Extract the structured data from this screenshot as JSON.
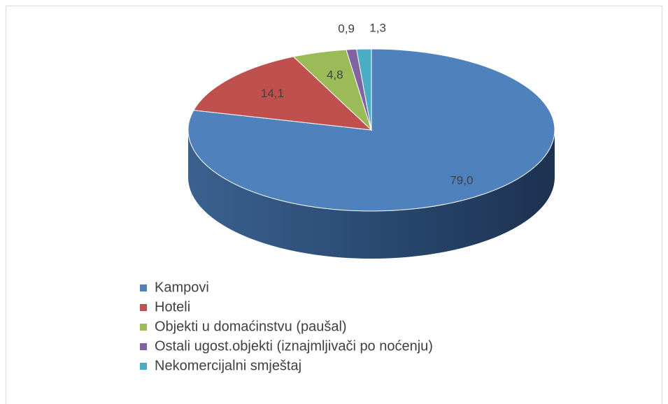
{
  "chart_data": {
    "type": "pie",
    "three_d": true,
    "categories": [
      "Kampovi",
      "Hoteli",
      "Objekti u domaćinstvu (paušal)",
      "Ostali ugost.objekti (iznajmljivači po noćenju)",
      "Nekomercijalni smještaj"
    ],
    "values": [
      79.0,
      14.1,
      4.8,
      0.9,
      1.3
    ],
    "value_labels": [
      "79,0",
      "14,1",
      "4,8",
      "0,9",
      "1,3"
    ],
    "colors": [
      "#4f81bd",
      "#c0504d",
      "#9bbb59",
      "#8064a2",
      "#4bacc6"
    ],
    "legend": "bottom"
  }
}
